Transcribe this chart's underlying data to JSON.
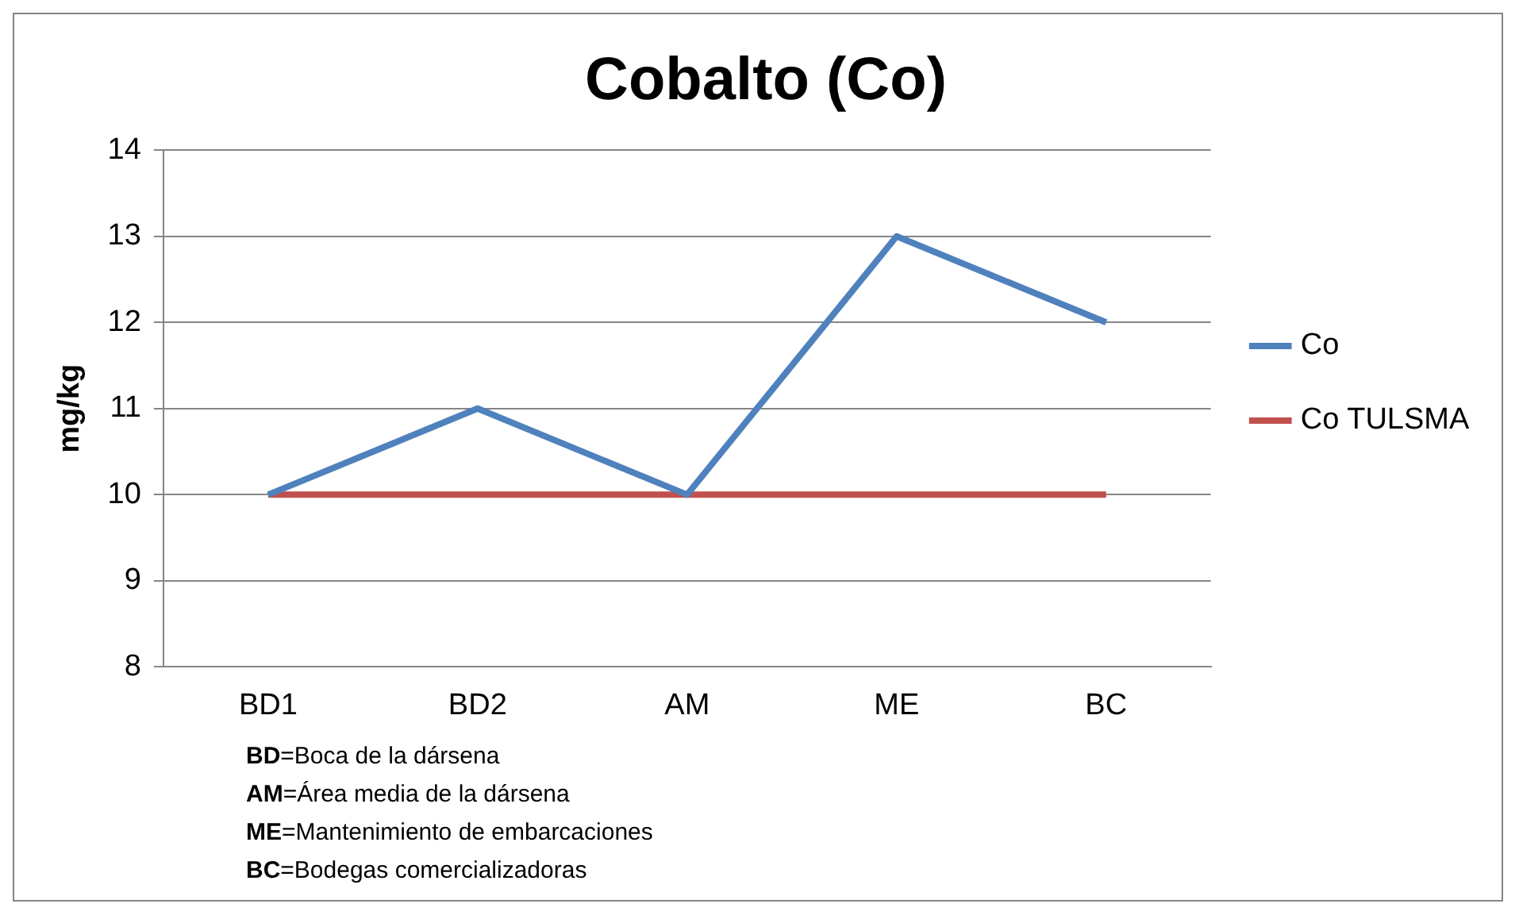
{
  "chart_data": {
    "type": "line",
    "title": "Cobalto (Co)",
    "ylabel": "mg/kg",
    "categories": [
      "BD1",
      "BD2",
      "AM",
      "ME",
      "BC"
    ],
    "series": [
      {
        "name": "Co",
        "color": "#4f81bd",
        "values": [
          10,
          11,
          10,
          13,
          12
        ]
      },
      {
        "name": "Co TULSMA",
        "color": "#c0504d",
        "values": [
          10,
          10,
          10,
          10,
          10
        ]
      }
    ],
    "ylim": [
      8,
      14
    ],
    "yticks": [
      8,
      9,
      10,
      11,
      12,
      13,
      14
    ],
    "grid": "y",
    "legend": "right",
    "marker": "none",
    "line_style": "solid",
    "annotations": [
      "BD=Boca de la dársena",
      "AM=Área media de la dársena",
      "ME=Mantenimiento de embarcaciones",
      "BC=Bodegas comercializadoras"
    ]
  }
}
